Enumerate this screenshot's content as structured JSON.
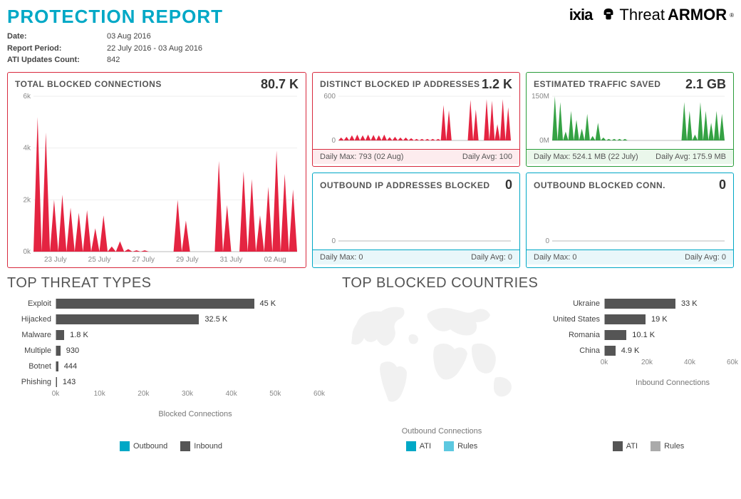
{
  "report": {
    "title": "PROTECTION REPORT",
    "date_label": "Date:",
    "date_value": "03 Aug 2016",
    "period_label": "Report Period:",
    "period_value": "22 July 2016 - 03 Aug 2016",
    "updates_label": "ATI Updates Count:",
    "updates_value": "842"
  },
  "branding": {
    "ixia": "ixia",
    "threat_prefix": "Threat",
    "threat_suffix": "ARMOR"
  },
  "panels": {
    "total_blocked": {
      "title": "TOTAL BLOCKED CONNECTIONS",
      "value": "80.7 K",
      "type": "area",
      "color": "#e31837",
      "ylim": [
        0,
        6000
      ],
      "yticks": [
        "0k",
        "2k",
        "4k",
        "6k"
      ],
      "xticks": [
        "23 July",
        "25 July",
        "27 July",
        "29 July",
        "31 July",
        "02 Aug"
      ],
      "values": [
        5200,
        4600,
        2000,
        2200,
        1700,
        1500,
        1600,
        900,
        1400,
        200,
        400,
        100,
        50,
        50,
        0,
        0,
        0,
        2000,
        1200,
        0,
        0,
        0,
        3500,
        1800,
        0,
        3100,
        2800,
        1400,
        2500,
        3900,
        3000,
        2400
      ]
    },
    "distinct_ip": {
      "title": "DISTINCT BLOCKED IP ADDRESSES",
      "value": "1.2 K",
      "type": "area",
      "color": "#e31837",
      "ylim": [
        0,
        600
      ],
      "yticks": [
        "0",
        "600"
      ],
      "footer_bg": "#fdecee",
      "daily_max": "Daily Max: 793 (02 Aug)",
      "daily_avg": "Daily Avg: 100",
      "values": [
        40,
        50,
        70,
        80,
        70,
        80,
        75,
        70,
        80,
        45,
        50,
        40,
        40,
        30,
        20,
        20,
        20,
        20,
        20,
        480,
        410,
        0,
        0,
        0,
        550,
        420,
        0,
        560,
        540,
        220,
        560,
        450
      ]
    },
    "traffic_saved": {
      "title": "ESTIMATED TRAFFIC SAVED",
      "value": "2.1 GB",
      "type": "area",
      "color": "#2a9d3a",
      "ylim": [
        0,
        150
      ],
      "yticks": [
        "0M",
        "150M"
      ],
      "footer_bg": "#eaf7eb",
      "daily_max": "Daily Max: 524.1 MB (22 July)",
      "daily_avg": "Daily Avg: 175.9 MB",
      "values": [
        150,
        130,
        30,
        100,
        70,
        40,
        90,
        15,
        60,
        10,
        5,
        5,
        5,
        5,
        0,
        0,
        0,
        0,
        0,
        0,
        0,
        0,
        0,
        0,
        130,
        100,
        20,
        130,
        100,
        60,
        100,
        90
      ]
    },
    "outbound_ip": {
      "title": "OUTBOUND IP ADDRESSES BLOCKED",
      "value": "0",
      "type": "area",
      "color": "#00a8c6",
      "ylim": [
        0,
        1
      ],
      "yticks": [
        "0"
      ],
      "footer_bg": "#e9f7fa",
      "daily_max": "Daily Max: 0",
      "daily_avg": "Daily Avg: 0",
      "values": [
        0,
        0,
        0,
        0,
        0,
        0,
        0,
        0,
        0,
        0,
        0,
        0,
        0,
        0,
        0,
        0,
        0,
        0,
        0,
        0,
        0,
        0,
        0,
        0,
        0,
        0,
        0,
        0,
        0,
        0,
        0,
        0
      ]
    },
    "outbound_conn": {
      "title": "OUTBOUND BLOCKED CONN.",
      "value": "0",
      "type": "area",
      "color": "#00a8c6",
      "ylim": [
        0,
        1
      ],
      "yticks": [
        "0"
      ],
      "footer_bg": "#e9f7fa",
      "daily_max": "Daily Max: 0",
      "daily_avg": "Daily Avg: 0",
      "values": [
        0,
        0,
        0,
        0,
        0,
        0,
        0,
        0,
        0,
        0,
        0,
        0,
        0,
        0,
        0,
        0,
        0,
        0,
        0,
        0,
        0,
        0,
        0,
        0,
        0,
        0,
        0,
        0,
        0,
        0,
        0,
        0
      ]
    }
  },
  "threat_types": {
    "title": "TOP THREAT TYPES",
    "xmax": 60000,
    "xticks": [
      "0k",
      "10k",
      "20k",
      "30k",
      "40k",
      "50k",
      "60k"
    ],
    "axis_title": "Blocked Connections",
    "bar_color": "#555555",
    "items": [
      {
        "label": "Exploit",
        "value": 45000,
        "display": "45 K"
      },
      {
        "label": "Hijacked",
        "value": 32500,
        "display": "32.5 K"
      },
      {
        "label": "Malware",
        "value": 1800,
        "display": "1.8 K"
      },
      {
        "label": "Multiple",
        "value": 930,
        "display": "930"
      },
      {
        "label": "Botnet",
        "value": 444,
        "display": "444"
      },
      {
        "label": "Phishing",
        "value": 143,
        "display": "143"
      }
    ]
  },
  "blocked_countries": {
    "title": "TOP BLOCKED COUNTRIES",
    "xmax": 60000,
    "xticks": [
      "0k",
      "20k",
      "40k",
      "60k"
    ],
    "axis_title": "Inbound Connections",
    "axis_title_left": "Outbound Connections",
    "bar_color": "#555555",
    "items": [
      {
        "label": "Ukraine",
        "value": 33000,
        "display": "33 K"
      },
      {
        "label": "United States",
        "value": 19000,
        "display": "19 K"
      },
      {
        "label": "Romania",
        "value": 10100,
        "display": "10.1 K"
      },
      {
        "label": "China",
        "value": 4900,
        "display": "4.9 K"
      }
    ]
  },
  "legends": {
    "left": [
      {
        "label": "Outbound",
        "color": "#00a8c6"
      },
      {
        "label": "Inbound",
        "color": "#555555"
      }
    ],
    "middle": [
      {
        "label": "ATI",
        "color": "#00a8c6"
      },
      {
        "label": "Rules",
        "color": "#5cc8e0"
      }
    ],
    "right": [
      {
        "label": "ATI",
        "color": "#555555"
      },
      {
        "label": "Rules",
        "color": "#aaaaaa"
      }
    ]
  },
  "colors": {
    "title": "#00a8c6",
    "red": "#e31837",
    "green": "#2a9d3a",
    "blue": "#00a8c6",
    "bar": "#555555",
    "map": "#d0d0d0"
  }
}
